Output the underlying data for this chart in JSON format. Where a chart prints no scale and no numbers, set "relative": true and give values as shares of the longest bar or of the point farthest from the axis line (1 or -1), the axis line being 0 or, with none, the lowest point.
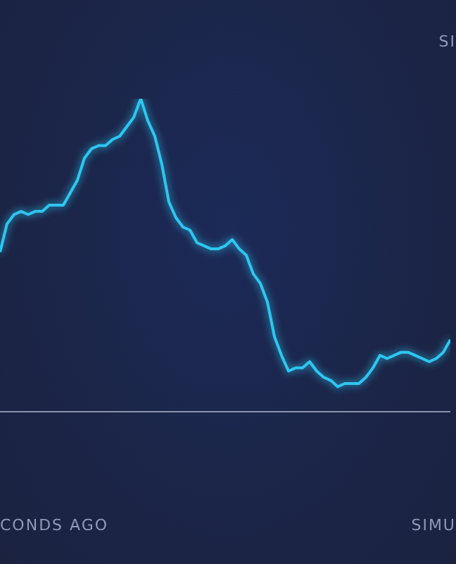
{
  "chart_data": {
    "type": "line",
    "relative": true,
    "categories": [
      null,
      null,
      null,
      null,
      null,
      null,
      null,
      null,
      null,
      null,
      null,
      null,
      null,
      null,
      null,
      null,
      null,
      null,
      null,
      null,
      null,
      null,
      null,
      null,
      null,
      null,
      null,
      null,
      null,
      null,
      null,
      null,
      null,
      null,
      null,
      null,
      null,
      null,
      null,
      null,
      null,
      null,
      null,
      null,
      null,
      null,
      null,
      null,
      null,
      null,
      null,
      null,
      null,
      null,
      null,
      null,
      null,
      null,
      null,
      null,
      null,
      null,
      null,
      null,
      null
    ],
    "series": [
      {
        "color": "#2ec6f0",
        "values": [
          0.51,
          0.6,
          0.63,
          0.64,
          0.63,
          0.64,
          0.64,
          0.66,
          0.66,
          0.66,
          0.7,
          0.74,
          0.81,
          0.84,
          0.85,
          0.85,
          0.87,
          0.88,
          0.91,
          0.94,
          1,
          0.93,
          0.88,
          0.79,
          0.67,
          0.62,
          0.59,
          0.58,
          0.54,
          0.53,
          0.52,
          0.52,
          0.53,
          0.55,
          0.52,
          0.5,
          0.44,
          0.41,
          0.35,
          0.24,
          0.18,
          0.13,
          0.14,
          0.14,
          0.16,
          0.13,
          0.11,
          0.1,
          0.08,
          0.09,
          0.09,
          0.09,
          0.11,
          0.14,
          0.18,
          0.17,
          0.18,
          0.19,
          0.19,
          0.18,
          0.17,
          0.16,
          0.17,
          0.19,
          0.23
        ]
      }
    ],
    "annotations": [
      "SI",
      "CONDS AGO",
      "SIMU"
    ],
    "grid": false,
    "marker": "none",
    "line_style": "solid"
  }
}
